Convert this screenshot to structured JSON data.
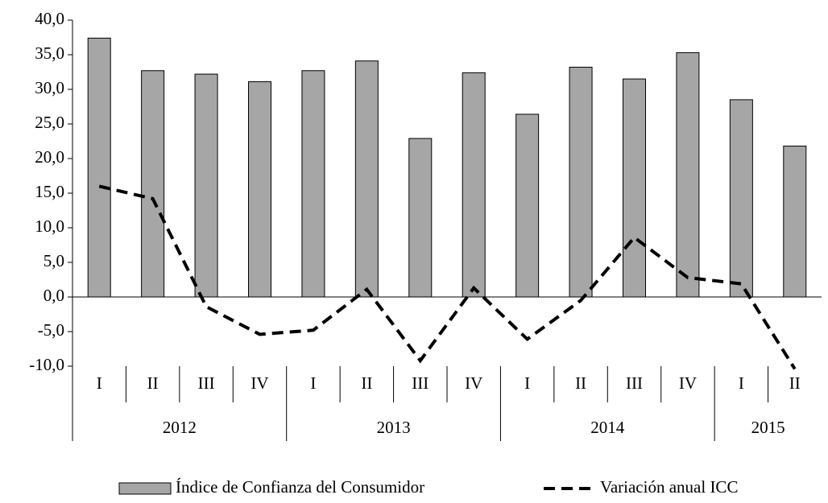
{
  "chart_data": {
    "type": "bar-line",
    "groups": [
      {
        "name": "2012",
        "categories": [
          "I",
          "II",
          "III",
          "IV"
        ]
      },
      {
        "name": "2013",
        "categories": [
          "I",
          "II",
          "III",
          "IV"
        ]
      },
      {
        "name": "2014",
        "categories": [
          "I",
          "II",
          "III",
          "IV"
        ]
      },
      {
        "name": "2015",
        "categories": [
          "I",
          "II"
        ]
      }
    ],
    "series": [
      {
        "name": "Índice de Confianza del Consumidor",
        "type": "bar",
        "color": "#a6a6a6",
        "values": [
          37.4,
          32.7,
          32.2,
          31.1,
          32.7,
          34.1,
          22.9,
          32.4,
          26.4,
          33.2,
          31.5,
          35.3,
          28.5,
          21.8
        ]
      },
      {
        "name": "Variación anual ICC",
        "type": "line",
        "color": "#000000",
        "dashed": true,
        "values": [
          16.0,
          14.2,
          -1.4,
          -5.4,
          -4.8,
          1.1,
          -9.2,
          1.3,
          -6.1,
          -0.5,
          8.6,
          2.8,
          1.9,
          -10.4
        ]
      }
    ],
    "ylim": [
      -10,
      40
    ],
    "yticks": [
      {
        "value": -10,
        "label": "-10,0"
      },
      {
        "value": -5,
        "label": "-5,0"
      },
      {
        "value": 0,
        "label": "0,0"
      },
      {
        "value": 5,
        "label": "5,0"
      },
      {
        "value": 10,
        "label": "10,0"
      },
      {
        "value": 15,
        "label": "15,0"
      },
      {
        "value": 20,
        "label": "20,0"
      },
      {
        "value": 25,
        "label": "25,0"
      },
      {
        "value": 30,
        "label": "30,0"
      },
      {
        "value": 35,
        "label": "35,0"
      },
      {
        "value": 40,
        "label": "40,0"
      }
    ]
  }
}
